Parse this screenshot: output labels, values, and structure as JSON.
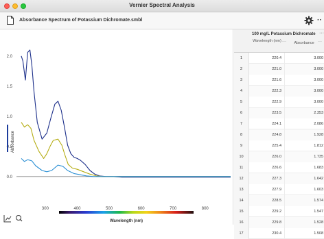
{
  "window": {
    "title": "Vernier Spectral Analysis"
  },
  "toolbar": {
    "document_title": "Absorbance Spectrum of Potassium Dichromate.smbl",
    "more_label": "··"
  },
  "graph": {
    "ylabel": "Absorbance",
    "xlabel": "Wavelength (nm)",
    "y_ticks": [
      "2.0",
      "1.5",
      "1.0",
      "0.5",
      "0.0"
    ],
    "x_ticks": [
      "300",
      "400",
      "500",
      "600",
      "700",
      "800"
    ]
  },
  "table": {
    "dataset_name": "100 mg/L Potassium Dichromate",
    "dataset_more": "···",
    "col_wavelength": "Wavelength (nm)",
    "col_absorbance": "Absorbance",
    "col_more": "···",
    "rows": [
      {
        "n": "1",
        "wl": "220.4",
        "ab": "3.000"
      },
      {
        "n": "2",
        "wl": "221.0",
        "ab": "3.000"
      },
      {
        "n": "3",
        "wl": "221.6",
        "ab": "3.000"
      },
      {
        "n": "4",
        "wl": "222.3",
        "ab": "3.000"
      },
      {
        "n": "5",
        "wl": "222.9",
        "ab": "3.000"
      },
      {
        "n": "6",
        "wl": "223.5",
        "ab": "2.353"
      },
      {
        "n": "7",
        "wl": "224.1",
        "ab": "2.086"
      },
      {
        "n": "8",
        "wl": "224.8",
        "ab": "1.928"
      },
      {
        "n": "9",
        "wl": "225.4",
        "ab": "1.812"
      },
      {
        "n": "10",
        "wl": "226.0",
        "ab": "1.735"
      },
      {
        "n": "11",
        "wl": "226.6",
        "ab": "1.683"
      },
      {
        "n": "12",
        "wl": "227.3",
        "ab": "1.642"
      },
      {
        "n": "13",
        "wl": "227.9",
        "ab": "1.603"
      },
      {
        "n": "14",
        "wl": "228.5",
        "ab": "1.574"
      },
      {
        "n": "15",
        "wl": "229.2",
        "ab": "1.547"
      },
      {
        "n": "16",
        "wl": "229.8",
        "ab": "1.528"
      },
      {
        "n": "17",
        "wl": "230.4",
        "ab": "1.508"
      }
    ]
  },
  "chart_data": {
    "type": "line",
    "xlabel": "Wavelength (nm)",
    "ylabel": "Absorbance",
    "xlim": [
      210,
      880
    ],
    "ylim": [
      -0.15,
      2.35
    ],
    "x_ticks": [
      300,
      400,
      500,
      600,
      700,
      800
    ],
    "y_ticks": [
      0.0,
      0.5,
      1.0,
      1.5,
      2.0
    ],
    "grid": false,
    "series": [
      {
        "color": "#1c2f8a",
        "x": [
          225,
          230,
          238,
          245,
          252,
          258,
          265,
          275,
          290,
          305,
          318,
          330,
          340,
          350,
          360,
          370,
          380,
          390,
          400,
          410,
          425,
          440,
          455,
          470,
          490,
          510,
          540,
          580,
          650,
          720,
          800,
          880
        ],
        "y": [
          2.0,
          1.92,
          1.6,
          2.06,
          2.1,
          1.85,
          1.4,
          0.9,
          0.62,
          0.72,
          0.98,
          1.2,
          1.25,
          1.1,
          0.82,
          0.52,
          0.38,
          0.32,
          0.3,
          0.27,
          0.2,
          0.1,
          0.04,
          0.01,
          0.0,
          0.0,
          -0.01,
          -0.01,
          -0.01,
          -0.01,
          -0.01,
          -0.01
        ]
      },
      {
        "color": "#b5ad14",
        "x": [
          225,
          235,
          245,
          255,
          265,
          280,
          295,
          305,
          315,
          325,
          340,
          352,
          362,
          372,
          385,
          400,
          420,
          440,
          460,
          480,
          520,
          600,
          700,
          880
        ],
        "y": [
          0.9,
          0.82,
          0.86,
          0.8,
          0.6,
          0.42,
          0.3,
          0.38,
          0.5,
          0.6,
          0.62,
          0.52,
          0.35,
          0.2,
          0.14,
          0.12,
          0.08,
          0.04,
          0.01,
          0.0,
          0.0,
          0.0,
          0.0,
          0.0
        ]
      },
      {
        "color": "#2a8fd4",
        "x": [
          225,
          235,
          245,
          258,
          270,
          290,
          305,
          320,
          340,
          355,
          370,
          390,
          410,
          430,
          450,
          480,
          520,
          600,
          700,
          880
        ],
        "y": [
          0.3,
          0.25,
          0.28,
          0.26,
          0.18,
          0.1,
          0.08,
          0.1,
          0.19,
          0.17,
          0.1,
          0.05,
          0.03,
          0.01,
          0.0,
          0.0,
          0.0,
          0.0,
          0.0,
          0.0
        ]
      }
    ]
  }
}
